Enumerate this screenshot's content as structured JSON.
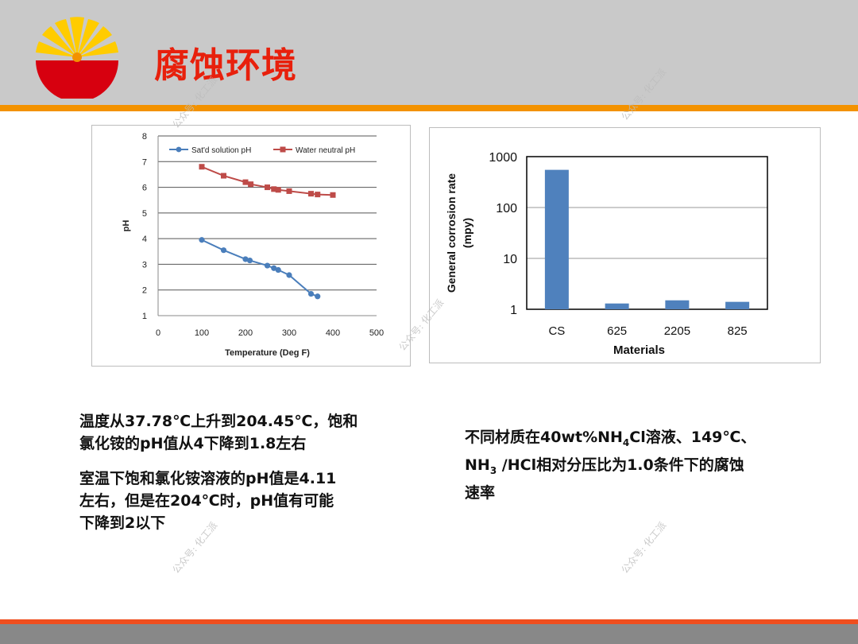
{
  "slide": {
    "title": "腐蚀环境",
    "watermark": "公众号: 化工派"
  },
  "text": {
    "left_p1": [
      "温度从37.78℃上升到204.45℃，饱和",
      "氯化铵的pH值从4下降到1.8左右"
    ],
    "left_p2": [
      "室温下饱和氯化铵溶液的pH值是4.11",
      "左右，但是在204℃时，pH值有可能",
      "下降到2以下"
    ],
    "right_l1": "不同材质在40wt%NH",
    "right_l1_sub": "4",
    "right_l1_end": "Cl溶液、149℃、",
    "right_l2_a": "NH",
    "right_l2_sub": "3",
    "right_l2_end": " /HCl相对分压比为1.0条件下的腐蚀",
    "right_l3": "速率"
  },
  "colors": {
    "series_blue": "#4a7ebb",
    "series_red": "#be4b48",
    "bar": "#4f81bd",
    "title_red": "#e8200c",
    "accent_orange": "#f39200"
  },
  "chart_data": [
    {
      "type": "line",
      "xlabel": "Temperature (Deg F)",
      "ylabel": "pH",
      "xlim": [
        0,
        500
      ],
      "ylim": [
        1,
        8
      ],
      "x_ticks": [
        0,
        100,
        200,
        300,
        400,
        500
      ],
      "y_ticks": [
        1,
        2,
        3,
        4,
        5,
        6,
        7,
        8
      ],
      "grid": "horizontal",
      "legend": "top",
      "series": [
        {
          "name": "Sat'd solution pH",
          "color": "#4a7ebb",
          "marker": "circle",
          "x": [
            100,
            150,
            200,
            210,
            250,
            265,
            275,
            300,
            350,
            365
          ],
          "y": [
            3.95,
            3.55,
            3.2,
            3.15,
            2.95,
            2.85,
            2.78,
            2.58,
            1.85,
            1.75
          ]
        },
        {
          "name": "Water neutral pH",
          "color": "#be4b48",
          "marker": "square",
          "x": [
            100,
            150,
            200,
            212,
            250,
            265,
            275,
            300,
            350,
            365,
            400
          ],
          "y": [
            6.8,
            6.45,
            6.2,
            6.12,
            6.0,
            5.93,
            5.9,
            5.85,
            5.75,
            5.72,
            5.7
          ]
        }
      ]
    },
    {
      "type": "bar",
      "xlabel": "Materials",
      "ylabel": "General corrosion rate (mpy)",
      "yscale": "log",
      "ylim": [
        1,
        1000
      ],
      "y_ticks": [
        1,
        10,
        100,
        1000
      ],
      "grid": "horizontal",
      "categories": [
        "CS",
        "625",
        "2205",
        "825"
      ],
      "values": [
        550,
        1.3,
        1.5,
        1.4
      ]
    }
  ]
}
